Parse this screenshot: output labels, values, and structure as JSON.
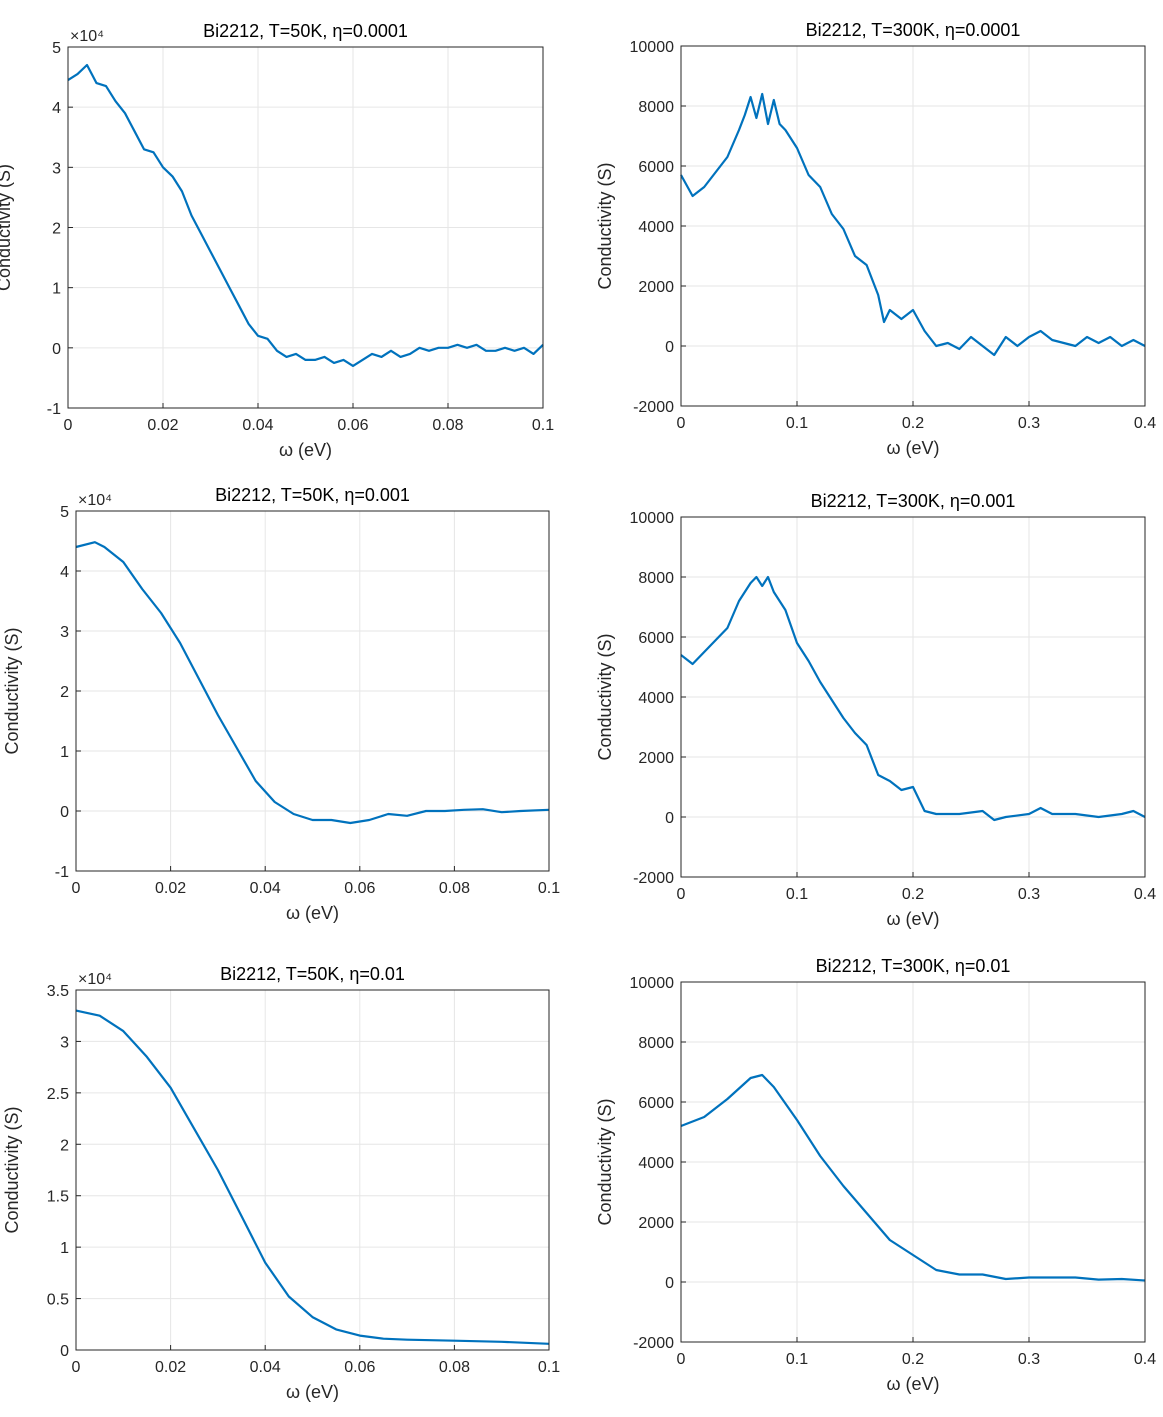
{
  "chart_data": [
    {
      "type": "line",
      "title": "Bi2212, T=50K, η=0.0001",
      "x_label": "ω (eV)",
      "y_label": "Conductivity (S)",
      "y_exponent_label": "×10⁴",
      "color": "#0072BD",
      "grid": true,
      "xlim": [
        0,
        0.1
      ],
      "xticks": [
        0,
        0.02,
        0.04,
        0.06,
        0.08,
        0.1
      ],
      "ylim": [
        -1,
        5
      ],
      "yticks": [
        -1,
        0,
        1,
        2,
        3,
        4,
        5
      ],
      "x": [
        0,
        0.002,
        0.004,
        0.005,
        0.006,
        0.008,
        0.01,
        0.012,
        0.014,
        0.016,
        0.018,
        0.02,
        0.022,
        0.024,
        0.026,
        0.028,
        0.03,
        0.032,
        0.034,
        0.036,
        0.038,
        0.04,
        0.042,
        0.044,
        0.046,
        0.048,
        0.05,
        0.052,
        0.054,
        0.056,
        0.058,
        0.06,
        0.062,
        0.064,
        0.066,
        0.068,
        0.07,
        0.072,
        0.074,
        0.076,
        0.078,
        0.08,
        0.082,
        0.084,
        0.086,
        0.088,
        0.09,
        0.092,
        0.094,
        0.096,
        0.098,
        0.1
      ],
      "values": [
        4.45,
        4.55,
        4.7,
        4.55,
        4.4,
        4.35,
        4.1,
        3.9,
        3.6,
        3.3,
        3.25,
        3.0,
        2.85,
        2.6,
        2.2,
        1.9,
        1.6,
        1.3,
        1.0,
        0.7,
        0.4,
        0.2,
        0.15,
        -0.05,
        -0.15,
        -0.1,
        -0.2,
        -0.2,
        -0.15,
        -0.25,
        -0.2,
        -0.3,
        -0.2,
        -0.1,
        -0.15,
        -0.05,
        -0.15,
        -0.1,
        0.0,
        -0.05,
        0.0,
        0.0,
        0.05,
        0.0,
        0.05,
        -0.05,
        -0.05,
        0.0,
        -0.05,
        0.0,
        -0.1,
        0.05
      ]
    },
    {
      "type": "line",
      "title": "Bi2212, T=300K, η=0.0001",
      "x_label": "ω (eV)",
      "y_label": "Conductivity (S)",
      "color": "#0072BD",
      "grid": true,
      "xlim": [
        0,
        0.4
      ],
      "xticks": [
        0,
        0.1,
        0.2,
        0.3,
        0.4
      ],
      "ylim": [
        -2000,
        10000
      ],
      "yticks": [
        -2000,
        0,
        2000,
        4000,
        6000,
        8000,
        10000
      ],
      "x": [
        0,
        0.01,
        0.02,
        0.03,
        0.04,
        0.05,
        0.055,
        0.06,
        0.065,
        0.07,
        0.075,
        0.08,
        0.085,
        0.09,
        0.1,
        0.11,
        0.12,
        0.13,
        0.14,
        0.15,
        0.16,
        0.17,
        0.175,
        0.18,
        0.19,
        0.2,
        0.21,
        0.22,
        0.23,
        0.24,
        0.25,
        0.26,
        0.27,
        0.28,
        0.29,
        0.3,
        0.31,
        0.32,
        0.33,
        0.34,
        0.35,
        0.36,
        0.37,
        0.38,
        0.39,
        0.4
      ],
      "values": [
        5700,
        5000,
        5300,
        5800,
        6300,
        7200,
        7700,
        8300,
        7600,
        8400,
        7400,
        8200,
        7400,
        7200,
        6600,
        5700,
        5300,
        4400,
        3900,
        3000,
        2700,
        1700,
        800,
        1200,
        900,
        1200,
        500,
        0,
        100,
        -100,
        300,
        0,
        -300,
        300,
        0,
        300,
        500,
        200,
        100,
        0,
        300,
        100,
        300,
        0,
        200,
        0
      ]
    },
    {
      "type": "line",
      "title": "Bi2212, T=50K, η=0.001",
      "x_label": "ω (eV)",
      "y_label": "Conductivity (S)",
      "y_exponent_label": "×10⁴",
      "color": "#0072BD",
      "grid": true,
      "xlim": [
        0,
        0.1
      ],
      "xticks": [
        0,
        0.02,
        0.04,
        0.06,
        0.08,
        0.1
      ],
      "ylim": [
        -1,
        5
      ],
      "yticks": [
        -1,
        0,
        1,
        2,
        3,
        4,
        5
      ],
      "x": [
        0,
        0.004,
        0.006,
        0.01,
        0.014,
        0.018,
        0.022,
        0.026,
        0.03,
        0.034,
        0.038,
        0.042,
        0.046,
        0.05,
        0.054,
        0.058,
        0.062,
        0.066,
        0.07,
        0.074,
        0.078,
        0.082,
        0.086,
        0.09,
        0.094,
        0.1
      ],
      "values": [
        4.4,
        4.48,
        4.4,
        4.15,
        3.7,
        3.3,
        2.8,
        2.2,
        1.6,
        1.05,
        0.5,
        0.15,
        -0.05,
        -0.15,
        -0.15,
        -0.2,
        -0.15,
        -0.05,
        -0.08,
        0,
        0,
        0.02,
        0.03,
        -0.02,
        0,
        0.02
      ]
    },
    {
      "type": "line",
      "title": "Bi2212, T=300K, η=0.001",
      "x_label": "ω (eV)",
      "y_label": "Conductivity (S)",
      "color": "#0072BD",
      "grid": true,
      "xlim": [
        0,
        0.4
      ],
      "xticks": [
        0,
        0.1,
        0.2,
        0.3,
        0.4
      ],
      "ylim": [
        -2000,
        10000
      ],
      "yticks": [
        -2000,
        0,
        2000,
        4000,
        6000,
        8000,
        10000
      ],
      "x": [
        0,
        0.01,
        0.02,
        0.03,
        0.04,
        0.05,
        0.06,
        0.065,
        0.07,
        0.075,
        0.08,
        0.09,
        0.1,
        0.11,
        0.12,
        0.13,
        0.14,
        0.15,
        0.16,
        0.17,
        0.18,
        0.19,
        0.2,
        0.21,
        0.22,
        0.24,
        0.26,
        0.27,
        0.28,
        0.3,
        0.31,
        0.32,
        0.34,
        0.36,
        0.38,
        0.39,
        0.4
      ],
      "values": [
        5400,
        5100,
        5500,
        5900,
        6300,
        7200,
        7800,
        8000,
        7700,
        8000,
        7500,
        6900,
        5800,
        5200,
        4500,
        3900,
        3300,
        2800,
        2400,
        1400,
        1200,
        900,
        1000,
        200,
        100,
        100,
        200,
        -100,
        0,
        100,
        300,
        100,
        100,
        0,
        100,
        200,
        0
      ]
    },
    {
      "type": "line",
      "title": "Bi2212, T=50K, η=0.01",
      "x_label": "ω (eV)",
      "y_label": "Conductivity (S)",
      "y_exponent_label": "×10⁴",
      "color": "#0072BD",
      "grid": true,
      "xlim": [
        0,
        0.1
      ],
      "xticks": [
        0,
        0.02,
        0.04,
        0.06,
        0.08,
        0.1
      ],
      "ylim": [
        0,
        3.5
      ],
      "yticks": [
        0,
        0.5,
        1,
        1.5,
        2,
        2.5,
        3,
        3.5
      ],
      "x": [
        0,
        0.005,
        0.01,
        0.015,
        0.02,
        0.025,
        0.03,
        0.035,
        0.04,
        0.045,
        0.05,
        0.055,
        0.06,
        0.065,
        0.07,
        0.08,
        0.09,
        0.1
      ],
      "values": [
        3.3,
        3.25,
        3.1,
        2.85,
        2.55,
        2.15,
        1.75,
        1.3,
        0.85,
        0.52,
        0.32,
        0.2,
        0.14,
        0.11,
        0.1,
        0.09,
        0.08,
        0.06
      ]
    },
    {
      "type": "line",
      "title": "Bi2212, T=300K, η=0.01",
      "x_label": "ω (eV)",
      "y_label": "Conductivity (S)",
      "color": "#0072BD",
      "grid": true,
      "xlim": [
        0,
        0.4
      ],
      "xticks": [
        0,
        0.1,
        0.2,
        0.3,
        0.4
      ],
      "ylim": [
        -2000,
        10000
      ],
      "yticks": [
        -2000,
        0,
        2000,
        4000,
        6000,
        8000,
        10000
      ],
      "x": [
        0,
        0.02,
        0.04,
        0.06,
        0.07,
        0.08,
        0.1,
        0.12,
        0.14,
        0.16,
        0.18,
        0.2,
        0.22,
        0.24,
        0.26,
        0.28,
        0.3,
        0.32,
        0.34,
        0.36,
        0.38,
        0.4
      ],
      "values": [
        5200,
        5500,
        6100,
        6800,
        6900,
        6500,
        5400,
        4200,
        3200,
        2300,
        1400,
        900,
        400,
        250,
        250,
        100,
        150,
        150,
        150,
        80,
        100,
        50
      ]
    }
  ]
}
